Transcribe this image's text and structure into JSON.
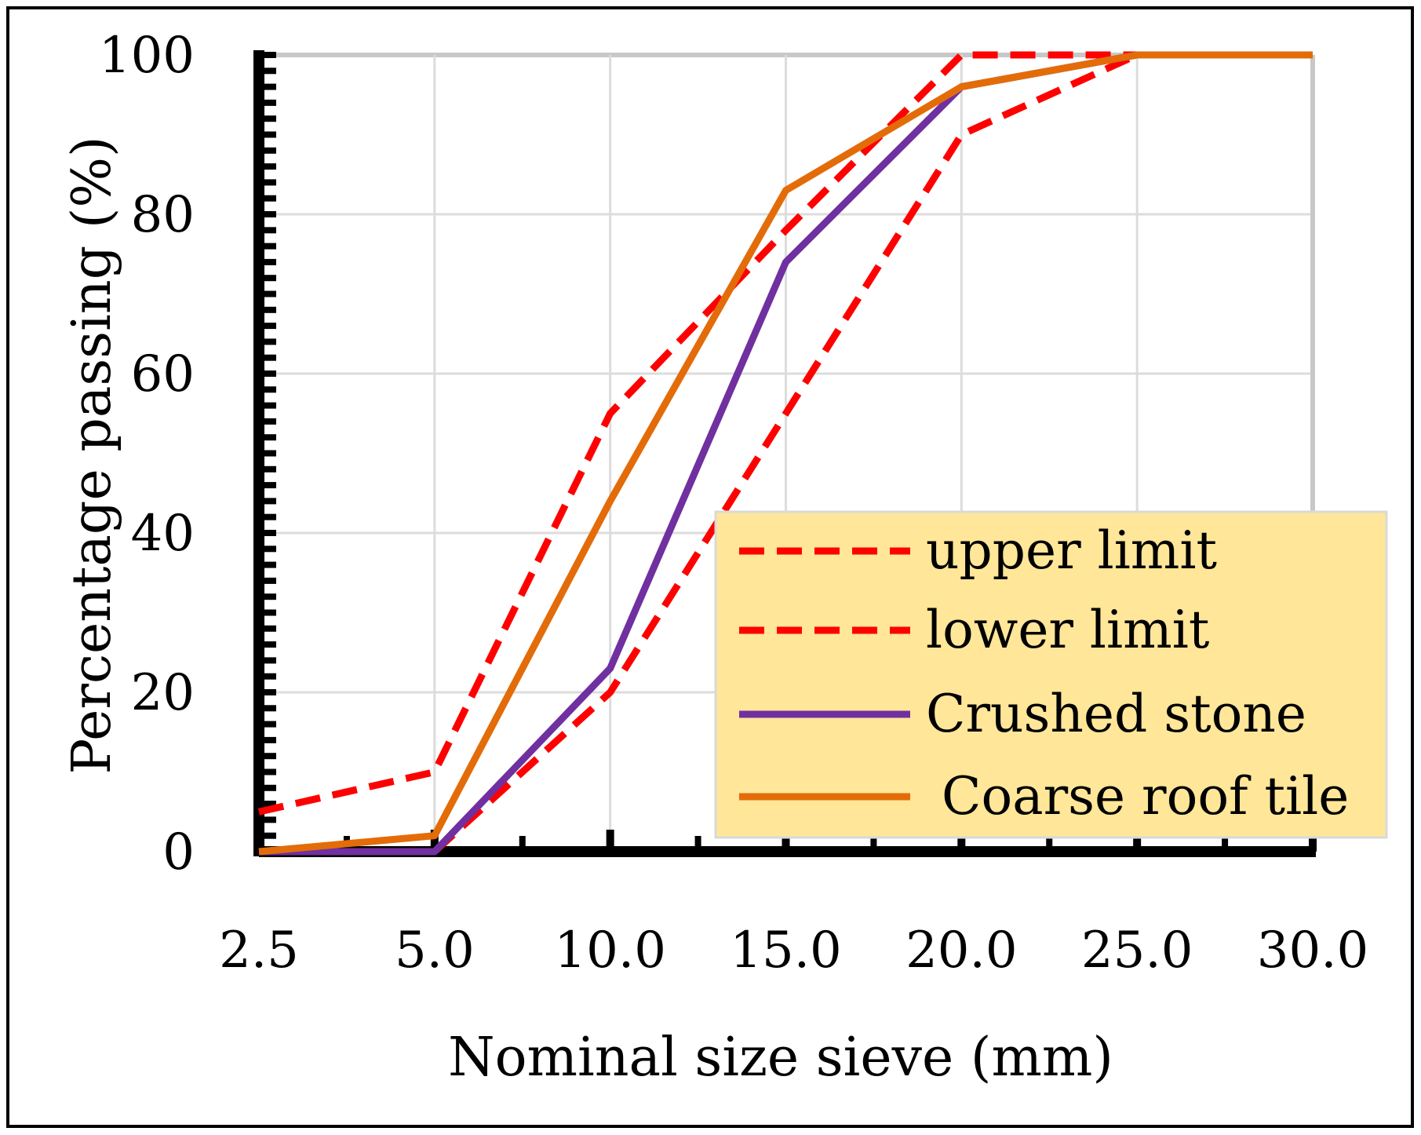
{
  "chart_data": {
    "type": "line",
    "title": "",
    "xlabel": "Nominal size sieve (mm)",
    "ylabel": "Percentage passing (%)",
    "categories": [
      "2.5",
      "5.0",
      "10.0",
      "15.0",
      "20.0",
      "25.0",
      "30.0"
    ],
    "ylim": [
      0,
      100
    ],
    "yticks": [
      "0",
      "20",
      "40",
      "60",
      "80",
      "100"
    ],
    "grid": true,
    "legend_position": "bottom-right",
    "series": [
      {
        "name": "upper limit",
        "color": "#ff0000",
        "style": "dashed",
        "values": [
          5,
          10,
          55,
          78,
          100,
          100,
          null
        ]
      },
      {
        "name": "lower limit",
        "color": "#ff0000",
        "style": "dashed",
        "values": [
          null,
          0,
          20,
          55,
          90,
          100,
          100
        ]
      },
      {
        "name": "Crushed stone",
        "color": "#7030a0",
        "style": "solid",
        "values": [
          0,
          0,
          23,
          74,
          96,
          100,
          100
        ]
      },
      {
        "name": "Coarse roof tile",
        "color": "#e36c09",
        "style": "solid",
        "values": [
          0,
          2,
          44,
          83,
          96,
          100,
          100
        ]
      }
    ],
    "legend_background": "#ffe699"
  }
}
